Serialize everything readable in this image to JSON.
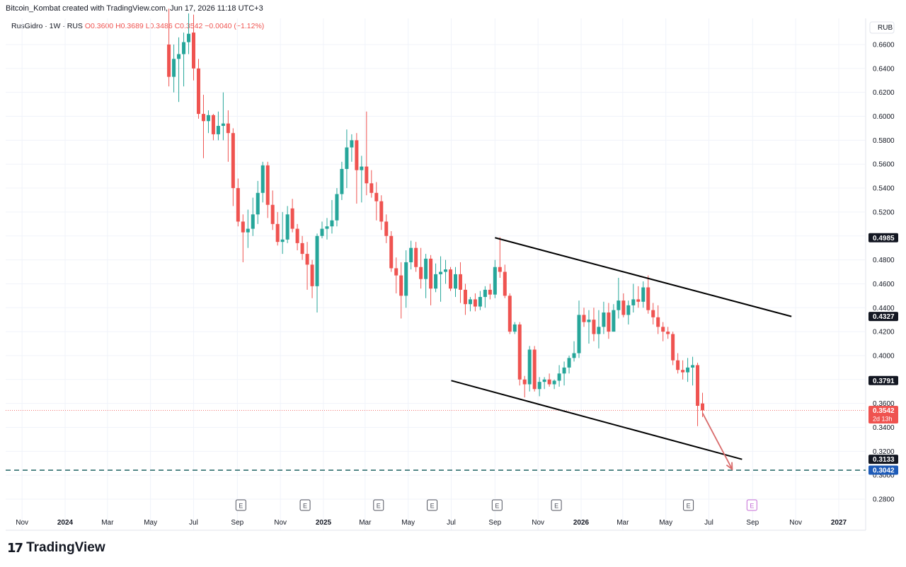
{
  "header": {
    "created_by": "Bitcoin_Kombat created with TradingView.com, Jun 17, 2026 11:18 UTC+3"
  },
  "legend": {
    "symbol": "RusGidro · 1W · RUS",
    "open": "O0.3600",
    "high": "H0.3689",
    "low": "L0.3486",
    "close": "C0.3542",
    "change": "−0.0040 (−1.12%)"
  },
  "footer": {
    "brand": "TradingView",
    "logo_icon": "tradingview-logo-icon"
  },
  "colors": {
    "up": "#26a69a",
    "down": "#ef5350",
    "dashed_level": "#2f6f6f",
    "arrow": "#d96b6b",
    "earnings_future": "#c46bd6"
  },
  "chart_data": {
    "type": "candlestick",
    "title": "",
    "currency_label": "RUB",
    "ylim": [
      0.27,
      0.685
    ],
    "y_ticks": [
      "0.2800",
      "0.3000",
      "0.3200",
      "0.3400",
      "0.3600",
      "0.3800",
      "0.4000",
      "0.4200",
      "0.4400",
      "0.4600",
      "0.4800",
      "0.5000",
      "0.5200",
      "0.5400",
      "0.5600",
      "0.5800",
      "0.6000",
      "0.6200",
      "0.6400",
      "0.6600"
    ],
    "x_ticks": [
      {
        "label": "Nov",
        "date": "2023-11-01"
      },
      {
        "label": "2024",
        "date": "2024-01-01"
      },
      {
        "label": "Mar",
        "date": "2024-03-01"
      },
      {
        "label": "May",
        "date": "2024-05-01"
      },
      {
        "label": "Jul",
        "date": "2024-07-01"
      },
      {
        "label": "Sep",
        "date": "2024-09-01"
      },
      {
        "label": "Nov",
        "date": "2024-11-01"
      },
      {
        "label": "2025",
        "date": "2025-01-01"
      },
      {
        "label": "Mar",
        "date": "2025-03-01"
      },
      {
        "label": "May",
        "date": "2025-05-01"
      },
      {
        "label": "Jul",
        "date": "2025-07-01"
      },
      {
        "label": "Sep",
        "date": "2025-09-01"
      },
      {
        "label": "Nov",
        "date": "2025-11-01"
      },
      {
        "label": "2026",
        "date": "2026-01-01"
      },
      {
        "label": "Mar",
        "date": "2026-03-01"
      },
      {
        "label": "May",
        "date": "2026-05-01"
      },
      {
        "label": "Jul",
        "date": "2026-07-01"
      },
      {
        "label": "Sep",
        "date": "2026-09-01"
      },
      {
        "label": "Nov",
        "date": "2026-11-01"
      },
      {
        "label": "2027",
        "date": "2027-01-01"
      }
    ],
    "candles": [
      {
        "date": "2024-05-27",
        "o": 0.66,
        "h": 0.69,
        "l": 0.625,
        "c": 0.633
      },
      {
        "date": "2024-06-03",
        "o": 0.633,
        "h": 0.66,
        "l": 0.62,
        "c": 0.648
      },
      {
        "date": "2024-06-10",
        "o": 0.648,
        "h": 0.666,
        "l": 0.612,
        "c": 0.652
      },
      {
        "date": "2024-06-17",
        "o": 0.652,
        "h": 0.67,
        "l": 0.625,
        "c": 0.662
      },
      {
        "date": "2024-06-24",
        "o": 0.662,
        "h": 0.686,
        "l": 0.652,
        "c": 0.669
      },
      {
        "date": "2024-07-01",
        "o": 0.67,
        "h": 0.685,
        "l": 0.63,
        "c": 0.64
      },
      {
        "date": "2024-07-08",
        "o": 0.64,
        "h": 0.648,
        "l": 0.598,
        "c": 0.602
      },
      {
        "date": "2024-07-15",
        "o": 0.602,
        "h": 0.618,
        "l": 0.565,
        "c": 0.596
      },
      {
        "date": "2024-07-22",
        "o": 0.596,
        "h": 0.605,
        "l": 0.586,
        "c": 0.601
      },
      {
        "date": "2024-07-29",
        "o": 0.601,
        "h": 0.602,
        "l": 0.58,
        "c": 0.585
      },
      {
        "date": "2024-08-05",
        "o": 0.585,
        "h": 0.604,
        "l": 0.58,
        "c": 0.592
      },
      {
        "date": "2024-08-12",
        "o": 0.592,
        "h": 0.62,
        "l": 0.58,
        "c": 0.594
      },
      {
        "date": "2024-08-19",
        "o": 0.594,
        "h": 0.605,
        "l": 0.562,
        "c": 0.586
      },
      {
        "date": "2024-08-26",
        "o": 0.586,
        "h": 0.59,
        "l": 0.525,
        "c": 0.54
      },
      {
        "date": "2024-09-02",
        "o": 0.54,
        "h": 0.548,
        "l": 0.508,
        "c": 0.512
      },
      {
        "date": "2024-09-09",
        "o": 0.512,
        "h": 0.518,
        "l": 0.478,
        "c": 0.503
      },
      {
        "date": "2024-09-16",
        "o": 0.503,
        "h": 0.522,
        "l": 0.49,
        "c": 0.506
      },
      {
        "date": "2024-09-23",
        "o": 0.506,
        "h": 0.532,
        "l": 0.5,
        "c": 0.518
      },
      {
        "date": "2024-09-30",
        "o": 0.518,
        "h": 0.546,
        "l": 0.51,
        "c": 0.536
      },
      {
        "date": "2024-10-07",
        "o": 0.536,
        "h": 0.562,
        "l": 0.528,
        "c": 0.559
      },
      {
        "date": "2024-10-14",
        "o": 0.559,
        "h": 0.562,
        "l": 0.515,
        "c": 0.526
      },
      {
        "date": "2024-10-21",
        "o": 0.526,
        "h": 0.538,
        "l": 0.505,
        "c": 0.51
      },
      {
        "date": "2024-10-28",
        "o": 0.51,
        "h": 0.52,
        "l": 0.492,
        "c": 0.495
      },
      {
        "date": "2024-11-04",
        "o": 0.495,
        "h": 0.52,
        "l": 0.485,
        "c": 0.497
      },
      {
        "date": "2024-11-11",
        "o": 0.497,
        "h": 0.525,
        "l": 0.494,
        "c": 0.518
      },
      {
        "date": "2024-11-18",
        "o": 0.523,
        "h": 0.531,
        "l": 0.503,
        "c": 0.506
      },
      {
        "date": "2024-11-25",
        "o": 0.506,
        "h": 0.51,
        "l": 0.488,
        "c": 0.494
      },
      {
        "date": "2024-12-02",
        "o": 0.494,
        "h": 0.5,
        "l": 0.48,
        "c": 0.485
      },
      {
        "date": "2024-12-09",
        "o": 0.485,
        "h": 0.495,
        "l": 0.455,
        "c": 0.476
      },
      {
        "date": "2024-12-16",
        "o": 0.476,
        "h": 0.48,
        "l": 0.448,
        "c": 0.458
      },
      {
        "date": "2024-12-23",
        "o": 0.458,
        "h": 0.502,
        "l": 0.436,
        "c": 0.5
      },
      {
        "date": "2024-12-30",
        "o": 0.5,
        "h": 0.512,
        "l": 0.498,
        "c": 0.506
      },
      {
        "date": "2025-01-06",
        "o": 0.506,
        "h": 0.515,
        "l": 0.497,
        "c": 0.508
      },
      {
        "date": "2025-01-13",
        "o": 0.508,
        "h": 0.53,
        "l": 0.502,
        "c": 0.513
      },
      {
        "date": "2025-01-20",
        "o": 0.513,
        "h": 0.54,
        "l": 0.508,
        "c": 0.535
      },
      {
        "date": "2025-01-27",
        "o": 0.535,
        "h": 0.562,
        "l": 0.53,
        "c": 0.556
      },
      {
        "date": "2025-02-03",
        "o": 0.556,
        "h": 0.589,
        "l": 0.54,
        "c": 0.574
      },
      {
        "date": "2025-02-10",
        "o": 0.574,
        "h": 0.585,
        "l": 0.562,
        "c": 0.58
      },
      {
        "date": "2025-02-17",
        "o": 0.58,
        "h": 0.586,
        "l": 0.527,
        "c": 0.555
      },
      {
        "date": "2025-02-24",
        "o": 0.555,
        "h": 0.567,
        "l": 0.528,
        "c": 0.558
      },
      {
        "date": "2025-03-03",
        "o": 0.558,
        "h": 0.604,
        "l": 0.534,
        "c": 0.544
      },
      {
        "date": "2025-03-10",
        "o": 0.544,
        "h": 0.555,
        "l": 0.532,
        "c": 0.536
      },
      {
        "date": "2025-03-17",
        "o": 0.536,
        "h": 0.545,
        "l": 0.513,
        "c": 0.529
      },
      {
        "date": "2025-03-24",
        "o": 0.529,
        "h": 0.534,
        "l": 0.505,
        "c": 0.512
      },
      {
        "date": "2025-03-31",
        "o": 0.512,
        "h": 0.518,
        "l": 0.494,
        "c": 0.5
      },
      {
        "date": "2025-04-07",
        "o": 0.5,
        "h": 0.504,
        "l": 0.47,
        "c": 0.473
      },
      {
        "date": "2025-04-14",
        "o": 0.473,
        "h": 0.482,
        "l": 0.452,
        "c": 0.467
      },
      {
        "date": "2025-04-21",
        "o": 0.467,
        "h": 0.478,
        "l": 0.431,
        "c": 0.45
      },
      {
        "date": "2025-04-28",
        "o": 0.45,
        "h": 0.488,
        "l": 0.44,
        "c": 0.478
      },
      {
        "date": "2025-05-05",
        "o": 0.478,
        "h": 0.496,
        "l": 0.472,
        "c": 0.49
      },
      {
        "date": "2025-05-12",
        "o": 0.49,
        "h": 0.495,
        "l": 0.47,
        "c": 0.474
      },
      {
        "date": "2025-05-19",
        "o": 0.474,
        "h": 0.49,
        "l": 0.456,
        "c": 0.464
      },
      {
        "date": "2025-05-26",
        "o": 0.464,
        "h": 0.485,
        "l": 0.448,
        "c": 0.481
      },
      {
        "date": "2025-06-02",
        "o": 0.481,
        "h": 0.484,
        "l": 0.442,
        "c": 0.456
      },
      {
        "date": "2025-06-09",
        "o": 0.456,
        "h": 0.477,
        "l": 0.453,
        "c": 0.468
      },
      {
        "date": "2025-06-16",
        "o": 0.468,
        "h": 0.483,
        "l": 0.445,
        "c": 0.47
      },
      {
        "date": "2025-06-23",
        "o": 0.47,
        "h": 0.48,
        "l": 0.46,
        "c": 0.472
      },
      {
        "date": "2025-06-30",
        "o": 0.472,
        "h": 0.474,
        "l": 0.454,
        "c": 0.456
      },
      {
        "date": "2025-07-07",
        "o": 0.456,
        "h": 0.474,
        "l": 0.449,
        "c": 0.468
      },
      {
        "date": "2025-07-14",
        "o": 0.468,
        "h": 0.478,
        "l": 0.444,
        "c": 0.455
      },
      {
        "date": "2025-07-21",
        "o": 0.455,
        "h": 0.46,
        "l": 0.434,
        "c": 0.443
      },
      {
        "date": "2025-07-28",
        "o": 0.443,
        "h": 0.449,
        "l": 0.437,
        "c": 0.447
      },
      {
        "date": "2025-08-04",
        "o": 0.447,
        "h": 0.452,
        "l": 0.437,
        "c": 0.441
      },
      {
        "date": "2025-08-11",
        "o": 0.441,
        "h": 0.454,
        "l": 0.438,
        "c": 0.449
      },
      {
        "date": "2025-08-18",
        "o": 0.449,
        "h": 0.458,
        "l": 0.44,
        "c": 0.455
      },
      {
        "date": "2025-08-25",
        "o": 0.455,
        "h": 0.46,
        "l": 0.447,
        "c": 0.451
      },
      {
        "date": "2025-09-01",
        "o": 0.451,
        "h": 0.48,
        "l": 0.448,
        "c": 0.474
      },
      {
        "date": "2025-09-08",
        "o": 0.474,
        "h": 0.499,
        "l": 0.465,
        "c": 0.47
      },
      {
        "date": "2025-09-15",
        "o": 0.47,
        "h": 0.476,
        "l": 0.448,
        "c": 0.45
      },
      {
        "date": "2025-09-22",
        "o": 0.45,
        "h": 0.452,
        "l": 0.418,
        "c": 0.42
      },
      {
        "date": "2025-09-29",
        "o": 0.42,
        "h": 0.428,
        "l": 0.418,
        "c": 0.426
      },
      {
        "date": "2025-10-06",
        "o": 0.426,
        "h": 0.428,
        "l": 0.375,
        "c": 0.38
      },
      {
        "date": "2025-10-13",
        "o": 0.38,
        "h": 0.383,
        "l": 0.365,
        "c": 0.376
      },
      {
        "date": "2025-10-20",
        "o": 0.376,
        "h": 0.408,
        "l": 0.37,
        "c": 0.405
      },
      {
        "date": "2025-10-27",
        "o": 0.405,
        "h": 0.408,
        "l": 0.37,
        "c": 0.372
      },
      {
        "date": "2025-11-03",
        "o": 0.372,
        "h": 0.382,
        "l": 0.366,
        "c": 0.378
      },
      {
        "date": "2025-11-10",
        "o": 0.378,
        "h": 0.382,
        "l": 0.372,
        "c": 0.38
      },
      {
        "date": "2025-11-17",
        "o": 0.38,
        "h": 0.385,
        "l": 0.374,
        "c": 0.376
      },
      {
        "date": "2025-11-24",
        "o": 0.376,
        "h": 0.38,
        "l": 0.372,
        "c": 0.379
      },
      {
        "date": "2025-12-01",
        "o": 0.379,
        "h": 0.392,
        "l": 0.374,
        "c": 0.385
      },
      {
        "date": "2025-12-08",
        "o": 0.385,
        "h": 0.395,
        "l": 0.375,
        "c": 0.39
      },
      {
        "date": "2025-12-15",
        "o": 0.39,
        "h": 0.4,
        "l": 0.385,
        "c": 0.398
      },
      {
        "date": "2025-12-22",
        "o": 0.398,
        "h": 0.412,
        "l": 0.395,
        "c": 0.402
      },
      {
        "date": "2025-12-29",
        "o": 0.402,
        "h": 0.446,
        "l": 0.398,
        "c": 0.434
      },
      {
        "date": "2026-01-05",
        "o": 0.434,
        "h": 0.44,
        "l": 0.424,
        "c": 0.428
      },
      {
        "date": "2026-01-12",
        "o": 0.428,
        "h": 0.438,
        "l": 0.41,
        "c": 0.43
      },
      {
        "date": "2026-01-19",
        "o": 0.43,
        "h": 0.44,
        "l": 0.412,
        "c": 0.418
      },
      {
        "date": "2026-01-26",
        "o": 0.418,
        "h": 0.438,
        "l": 0.406,
        "c": 0.424
      },
      {
        "date": "2026-02-02",
        "o": 0.424,
        "h": 0.445,
        "l": 0.418,
        "c": 0.436
      },
      {
        "date": "2026-02-09",
        "o": 0.436,
        "h": 0.444,
        "l": 0.414,
        "c": 0.42
      },
      {
        "date": "2026-02-16",
        "o": 0.42,
        "h": 0.443,
        "l": 0.42,
        "c": 0.438
      },
      {
        "date": "2026-02-23",
        "o": 0.438,
        "h": 0.465,
        "l": 0.431,
        "c": 0.446
      },
      {
        "date": "2026-03-02",
        "o": 0.446,
        "h": 0.452,
        "l": 0.432,
        "c": 0.434
      },
      {
        "date": "2026-03-09",
        "o": 0.434,
        "h": 0.446,
        "l": 0.426,
        "c": 0.442
      },
      {
        "date": "2026-03-16",
        "o": 0.442,
        "h": 0.46,
        "l": 0.436,
        "c": 0.447
      },
      {
        "date": "2026-03-23",
        "o": 0.447,
        "h": 0.458,
        "l": 0.44,
        "c": 0.445
      },
      {
        "date": "2026-03-30",
        "o": 0.445,
        "h": 0.462,
        "l": 0.44,
        "c": 0.457
      },
      {
        "date": "2026-04-06",
        "o": 0.457,
        "h": 0.467,
        "l": 0.435,
        "c": 0.438
      },
      {
        "date": "2026-04-13",
        "o": 0.438,
        "h": 0.444,
        "l": 0.426,
        "c": 0.432
      },
      {
        "date": "2026-04-20",
        "o": 0.432,
        "h": 0.442,
        "l": 0.418,
        "c": 0.424
      },
      {
        "date": "2026-04-27",
        "o": 0.424,
        "h": 0.428,
        "l": 0.412,
        "c": 0.42
      },
      {
        "date": "2026-05-04",
        "o": 0.42,
        "h": 0.424,
        "l": 0.414,
        "c": 0.418
      },
      {
        "date": "2026-05-11",
        "o": 0.418,
        "h": 0.42,
        "l": 0.392,
        "c": 0.396
      },
      {
        "date": "2026-05-18",
        "o": 0.396,
        "h": 0.402,
        "l": 0.385,
        "c": 0.388
      },
      {
        "date": "2026-05-25",
        "o": 0.388,
        "h": 0.396,
        "l": 0.38,
        "c": 0.386
      },
      {
        "date": "2026-06-01",
        "o": 0.386,
        "h": 0.398,
        "l": 0.378,
        "c": 0.39
      },
      {
        "date": "2026-06-08",
        "o": 0.39,
        "h": 0.399,
        "l": 0.375,
        "c": 0.392
      },
      {
        "date": "2026-06-15",
        "o": 0.392,
        "h": 0.394,
        "l": 0.341,
        "c": 0.358
      },
      {
        "date": "2026-06-22",
        "o": 0.36,
        "h": 0.3689,
        "l": 0.3486,
        "c": 0.3542
      }
    ],
    "channel_upper": [
      {
        "date": "2025-09-01",
        "price": 0.4985
      },
      {
        "date": "2026-10-26",
        "price": 0.4327
      }
    ],
    "channel_lower": [
      {
        "date": "2025-07-01",
        "price": 0.3791
      },
      {
        "date": "2026-08-17",
        "price": 0.3133
      }
    ],
    "horizontal_level": {
      "price": 0.3042,
      "style": "dashed"
    },
    "projection_arrow": [
      {
        "date": "2026-06-22",
        "price": 0.352
      },
      {
        "date": "2026-08-03",
        "price": 0.305
      }
    ],
    "current_price_line": 0.3542,
    "earnings_markers": [
      {
        "date": "2024-09-06",
        "label": "E"
      },
      {
        "date": "2024-12-06",
        "label": "E"
      },
      {
        "date": "2025-03-20",
        "label": "E"
      },
      {
        "date": "2025-06-04",
        "label": "E"
      },
      {
        "date": "2025-09-04",
        "label": "E"
      },
      {
        "date": "2025-11-27",
        "label": "E"
      },
      {
        "date": "2026-06-02",
        "label": "E"
      },
      {
        "date": "2026-08-31",
        "label": "E",
        "future": true
      }
    ],
    "price_tags": [
      {
        "price": 0.4985,
        "label": "0.4985",
        "style": "black"
      },
      {
        "price": 0.4327,
        "label": "0.4327",
        "style": "black"
      },
      {
        "price": 0.3791,
        "label": "0.3791",
        "style": "black"
      },
      {
        "price": 0.3542,
        "label": "0.3542",
        "sub": "2d 13h",
        "style": "red"
      },
      {
        "price": 0.3133,
        "label": "0.3133",
        "style": "black"
      },
      {
        "price": 0.3042,
        "label": "0.3042",
        "style": "blue"
      }
    ]
  }
}
